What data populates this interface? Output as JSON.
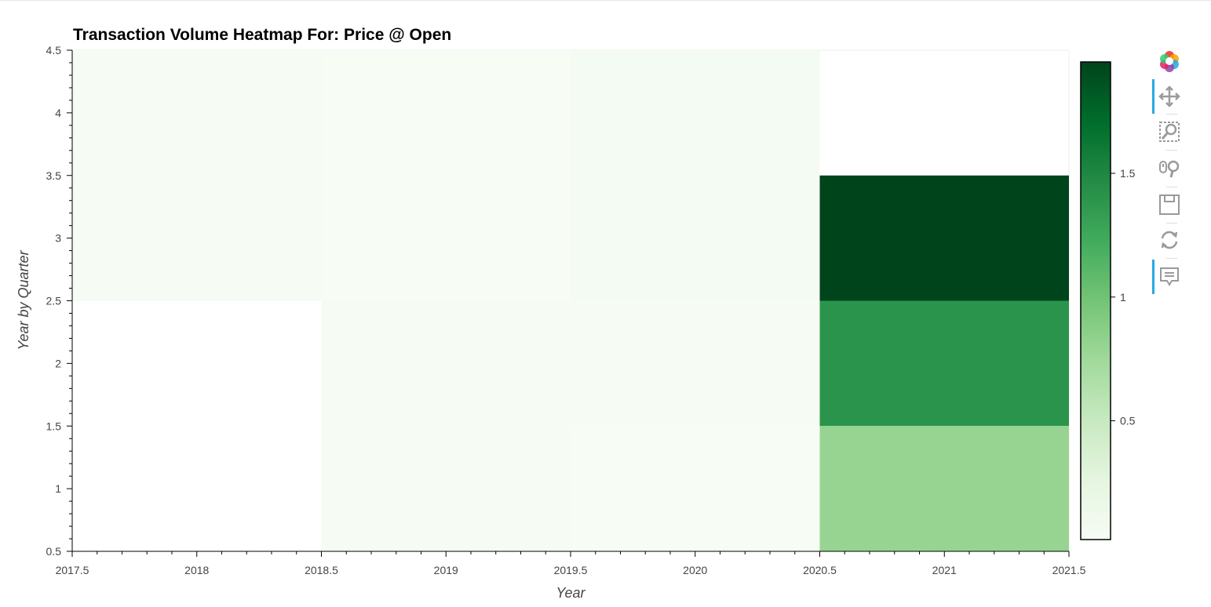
{
  "chart_data": {
    "type": "heatmap",
    "title": "Transaction Volume Heatmap For: Price @ Open",
    "xlabel": "Year",
    "ylabel": "Year by Quarter",
    "xlim": [
      2017.5,
      2021.5
    ],
    "ylim": [
      0.5,
      4.5
    ],
    "x_ticks": [
      "2017.5",
      "2018",
      "2018.5",
      "2019",
      "2019.5",
      "2020",
      "2020.5",
      "2021",
      "2021.5"
    ],
    "x_tick_values": [
      2017.5,
      2018,
      2018.5,
      2019,
      2019.5,
      2020,
      2020.5,
      2021,
      2021.5
    ],
    "y_ticks": [
      "0.5",
      "1",
      "1.5",
      "2",
      "2.5",
      "3",
      "3.5",
      "4",
      "4.5"
    ],
    "y_tick_values": [
      0.5,
      1,
      1.5,
      2,
      2.5,
      3,
      3.5,
      4,
      4.5
    ],
    "cells": [
      {
        "x0": 2017.5,
        "x1": 2018.5,
        "y0": 2.5,
        "y1": 4.5,
        "value": 0.04
      },
      {
        "x0": 2018.5,
        "x1": 2019.5,
        "y0": 2.5,
        "y1": 4.5,
        "value": 0.02
      },
      {
        "x0": 2019.5,
        "x1": 2020.5,
        "y0": 2.5,
        "y1": 4.5,
        "value": 0.06
      },
      {
        "x0": 2020.5,
        "x1": 2021.5,
        "y0": 2.5,
        "y1": 3.5,
        "value": 1.95
      },
      {
        "x0": 2018.5,
        "x1": 2019.5,
        "y0": 1.5,
        "y1": 2.5,
        "value": 0.04
      },
      {
        "x0": 2019.5,
        "x1": 2020.5,
        "y0": 1.5,
        "y1": 2.5,
        "value": 0.03
      },
      {
        "x0": 2020.5,
        "x1": 2021.5,
        "y0": 1.5,
        "y1": 2.5,
        "value": 1.4
      },
      {
        "x0": 2018.5,
        "x1": 2019.5,
        "y0": 0.5,
        "y1": 1.5,
        "value": 0.03
      },
      {
        "x0": 2019.5,
        "x1": 2020.5,
        "y0": 0.5,
        "y1": 1.5,
        "value": 0.025
      },
      {
        "x0": 2020.5,
        "x1": 2021.5,
        "y0": 0.5,
        "y1": 1.5,
        "value": 0.8
      }
    ],
    "colorbar": {
      "range": [
        0.02,
        1.95
      ],
      "ticks": [
        "0.5",
        "1",
        "1.5"
      ],
      "tick_values": [
        0.5,
        1,
        1.5
      ],
      "palette": [
        "#f7fcf5",
        "#e5f5e0",
        "#c7e9c0",
        "#a1d99b",
        "#74c476",
        "#41ab5d",
        "#238b45",
        "#006d2c",
        "#00441b"
      ]
    },
    "grid": false,
    "legend": "colorbar-right"
  },
  "toolbar": {
    "tools": [
      "bokeh-logo-icon",
      "pan-icon",
      "box-zoom-icon",
      "wheel-zoom-icon",
      "save-icon",
      "reset-icon",
      "hover-icon"
    ]
  }
}
